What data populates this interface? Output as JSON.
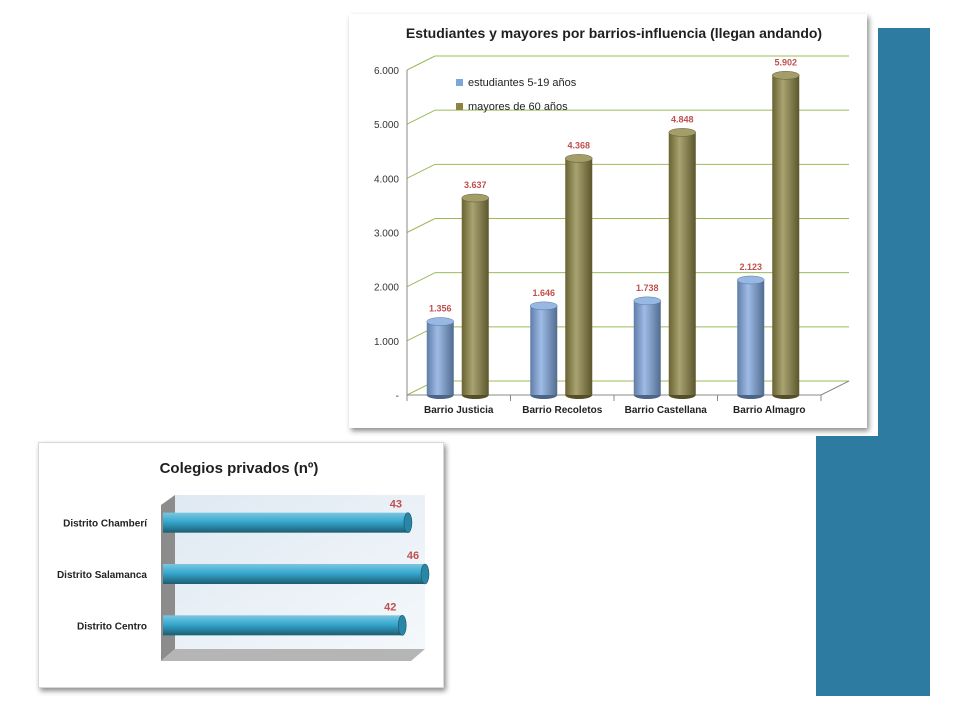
{
  "colors": {
    "panel": "#2e7ba1",
    "students": "#7ea6dd",
    "seniors": "#8c8443",
    "hbar": "#35a8cf",
    "grid": "#9bbb59",
    "value_label": "#c0504d",
    "title_green": "#4f6228"
  },
  "chart_data": [
    {
      "type": "bar",
      "title": "Estudiantes  y mayores por barrios-influencia  (llegan andando)",
      "categories": [
        "Barrio Justicia",
        "Barrio Recoletos",
        "Barrio Castellana",
        "Barrio Almagro"
      ],
      "series": [
        {
          "name": "estudiantes 5-19 años",
          "values": [
            1356,
            1646,
            1738,
            2123
          ],
          "labels": [
            "1.356",
            "1.646",
            "1.738",
            "2.123"
          ]
        },
        {
          "name": "mayores de 60 años",
          "values": [
            3637,
            4368,
            4848,
            5902
          ],
          "labels": [
            "3.637",
            "4.368",
            "4.848",
            "5.902"
          ]
        }
      ],
      "ylim": [
        0,
        6000
      ],
      "yticks": [
        "-",
        "1.000",
        "2.000",
        "3.000",
        "4.000",
        "5.000",
        "6.000"
      ],
      "grid": true,
      "legend_position": "top-left"
    },
    {
      "type": "bar",
      "orientation": "horizontal",
      "title": "Colegios privados (nº)",
      "categories": [
        "Distrito Chamberí",
        "Distrito Salamanca",
        "Distrito Centro"
      ],
      "values": [
        43,
        46,
        42
      ],
      "labels": [
        "43",
        "46",
        "42"
      ],
      "xlim": [
        0,
        46
      ]
    }
  ]
}
